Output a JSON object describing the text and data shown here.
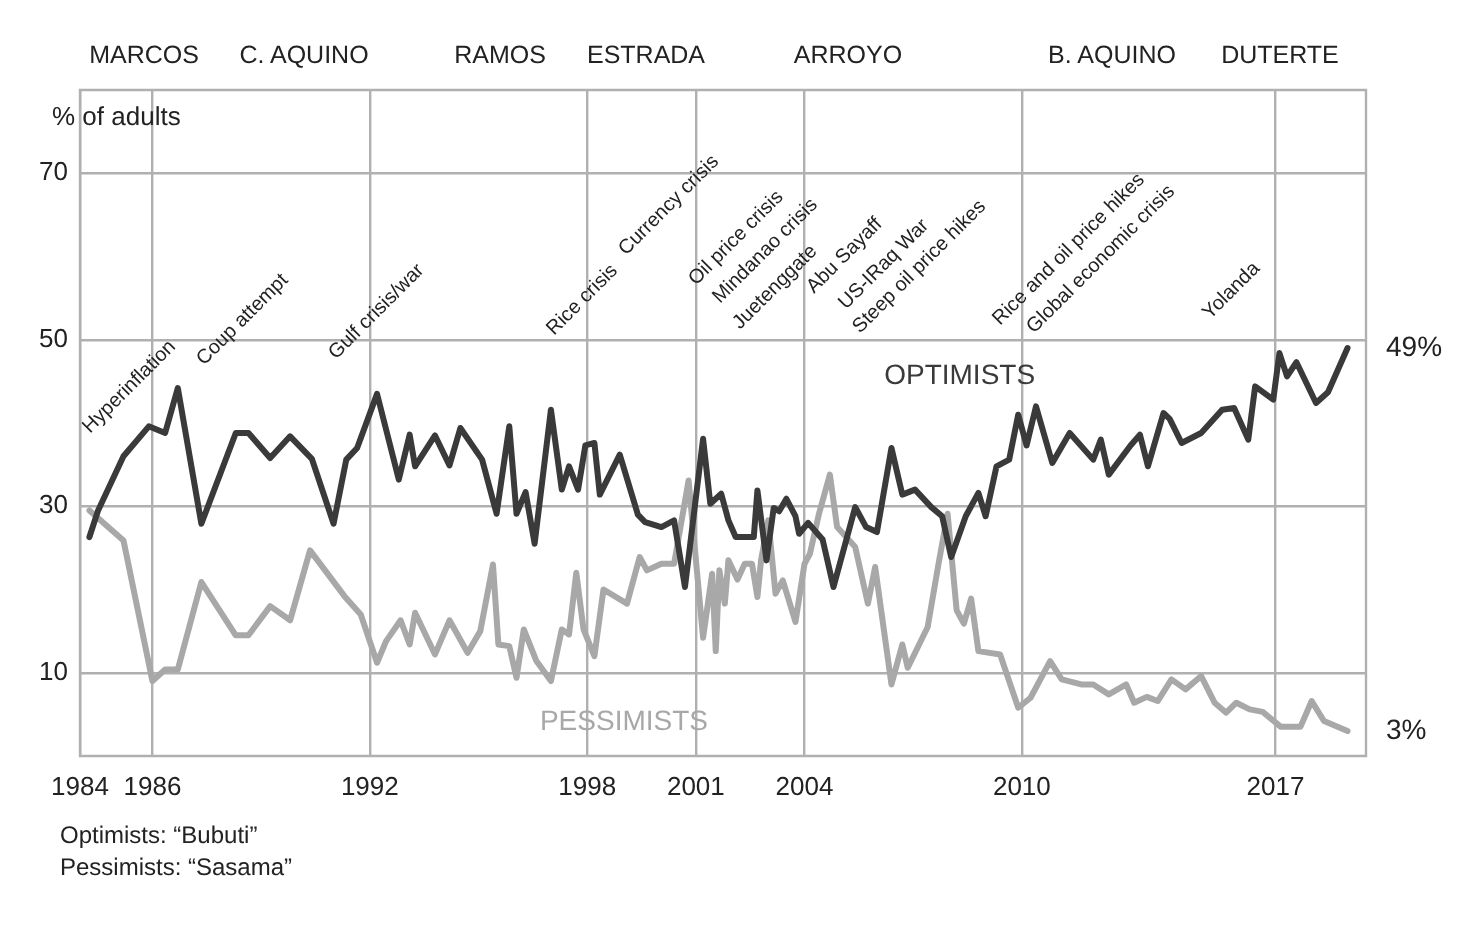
{
  "chart_data": {
    "type": "line",
    "ylabel": "% of adults",
    "xlim": [
      1984,
      2019.5
    ],
    "xticks": [
      1984,
      1986,
      1992,
      1998,
      2001,
      2004,
      2010,
      2017
    ],
    "ylim": [
      0,
      80
    ],
    "yticks": [
      10,
      30,
      50,
      70
    ],
    "grid": true,
    "legend": false,
    "marker": "none",
    "line_style": "solid",
    "series": [
      {
        "name": "OPTIMISTS",
        "color": "#3a3a3a",
        "x": [
          1984.26,
          1984.5,
          1985.2,
          1985.9,
          1986.35,
          1986.7,
          1987.35,
          1988.3,
          1988.65,
          1989.25,
          1989.8,
          1990.4,
          1991.0,
          1991.35,
          1991.65,
          1992.2,
          1992.8,
          1993.1,
          1993.25,
          1993.8,
          1994.2,
          1994.5,
          1995.1,
          1995.5,
          1995.85,
          1996.05,
          1996.3,
          1996.55,
          1997.0,
          1997.3,
          1997.5,
          1997.75,
          1997.95,
          1998.2,
          1998.35,
          1998.9,
          1999.4,
          1999.6,
          2000.05,
          2000.4,
          2000.7,
          2001.2,
          2001.4,
          2001.7,
          2001.9,
          2002.1,
          2002.6,
          2002.7,
          2002.95,
          2003.15,
          2003.3,
          2003.5,
          2003.75,
          2003.85,
          2004.1,
          2004.5,
          2004.8,
          2005.4,
          2005.7,
          2006.0,
          2006.4,
          2006.7,
          2007.05,
          2007.5,
          2007.8,
          2008.05,
          2008.45,
          2008.8,
          2009.0,
          2009.3,
          2009.65,
          2009.9,
          2010.13,
          2010.39,
          2010.84,
          2011.32,
          2011.97,
          2012.18,
          2012.4,
          2013.0,
          2013.26,
          2013.48,
          2013.91,
          2014.08,
          2014.41,
          2014.95,
          2015.53,
          2015.86,
          2016.25,
          2016.44,
          2016.94,
          2017.11,
          2017.32,
          2017.58,
          2018.12,
          2018.45,
          2018.99
        ],
        "values": [
          26.3,
          29.5,
          36,
          39.6,
          38.8,
          44.2,
          27.9,
          38.8,
          38.8,
          35.8,
          38.4,
          35.7,
          27.9,
          35.6,
          37,
          43.5,
          33.2,
          38.6,
          34.8,
          38.5,
          34.9,
          39.4,
          35.6,
          29.1,
          39.6,
          29.1,
          31.7,
          25.5,
          41.6,
          32,
          34.8,
          32,
          37.3,
          37.6,
          31.4,
          36.2,
          29,
          28.1,
          27.5,
          28.3,
          20.3,
          38.1,
          30.3,
          31.5,
          28.3,
          26.3,
          26.3,
          31.9,
          23.5,
          29.8,
          29.4,
          30.9,
          28.8,
          26.7,
          28,
          26,
          20.3,
          29.9,
          27.5,
          26.9,
          37,
          31.4,
          32,
          29.9,
          28.8,
          23.9,
          28.8,
          31.6,
          28.8,
          34.8,
          35.6,
          41,
          37.3,
          42,
          35.2,
          38.8,
          35.6,
          38,
          33.8,
          37.3,
          38.6,
          34.8,
          41.2,
          40.5,
          37.6,
          38.8,
          41.6,
          41.8,
          38,
          44.4,
          42.8,
          48.4,
          45.6,
          47.3,
          42.4,
          43.7,
          49
        ]
      },
      {
        "name": "PESSIMISTS",
        "color": "#a8a8a8",
        "x": [
          1984.26,
          1985.2,
          1986.0,
          1986.35,
          1986.7,
          1987.35,
          1988.3,
          1988.65,
          1989.25,
          1989.8,
          1990.35,
          1991.3,
          1991.75,
          1992.2,
          1992.45,
          1992.85,
          1993.1,
          1993.25,
          1993.8,
          1994.2,
          1994.7,
          1995.05,
          1995.4,
          1995.55,
          1995.85,
          1996.05,
          1996.25,
          1996.6,
          1997.0,
          1997.3,
          1997.5,
          1997.7,
          1997.9,
          1998.2,
          1998.45,
          1999.1,
          1999.45,
          1999.65,
          2000.05,
          2000.4,
          2000.8,
          2001.2,
          2001.45,
          2001.55,
          2001.65,
          2001.8,
          2001.9,
          2002.15,
          2002.35,
          2002.55,
          2002.7,
          2002.8,
          2003.0,
          2003.2,
          2003.4,
          2003.75,
          2004.0,
          2004.15,
          2004.4,
          2004.7,
          2004.9,
          2005.4,
          2005.75,
          2005.95,
          2006.4,
          2006.7,
          2006.85,
          2007.4,
          2007.7,
          2007.95,
          2008.2,
          2008.4,
          2008.6,
          2008.8,
          2009.4,
          2009.9,
          2010.24,
          2010.78,
          2011.1,
          2011.64,
          2011.97,
          2012.4,
          2012.88,
          2013.1,
          2013.45,
          2013.75,
          2014.13,
          2014.52,
          2014.95,
          2015.32,
          2015.64,
          2015.92,
          2016.29,
          2016.65,
          2017.15,
          2017.69,
          2018.0,
          2018.34,
          2018.99
        ],
        "values": [
          29.5,
          25.9,
          9,
          10.4,
          10.4,
          20.9,
          14.5,
          14.5,
          18,
          16.3,
          24.7,
          19.2,
          17,
          11.2,
          13.8,
          16.3,
          13.4,
          17.2,
          12.2,
          16.3,
          12.4,
          15,
          23,
          13.4,
          13.2,
          9.4,
          15.2,
          11.4,
          9,
          15.2,
          14.6,
          22,
          15.2,
          12,
          20,
          18.3,
          23.9,
          22.3,
          23.1,
          23.1,
          33.1,
          14.2,
          21.9,
          12.6,
          22.3,
          18.3,
          23.5,
          21.2,
          23.1,
          23.1,
          19.1,
          23.5,
          28.3,
          19.5,
          21.1,
          16.1,
          23.1,
          24.3,
          29.1,
          33.8,
          27.5,
          25.1,
          18.3,
          22.7,
          8.6,
          13.4,
          10.6,
          15.5,
          23.1,
          29.1,
          17.5,
          15.9,
          18.9,
          12.6,
          12.2,
          5.8,
          7,
          11.4,
          9.2,
          8.6,
          8.6,
          7.4,
          8.6,
          6.4,
          7.1,
          6.6,
          9.2,
          8,
          9.6,
          6.4,
          5.2,
          6.4,
          5.6,
          5.3,
          3.5,
          3.5,
          6.6,
          4.2,
          3
        ]
      }
    ],
    "annotations": [
      "MARCOS",
      "C. AQUINO",
      "RAMOS",
      "ESTRADA",
      "ARROYO",
      "B. AQUINO",
      "DUTERTE",
      "Hyperinflation",
      "Coup attempt",
      "Gulf crisis/war",
      "Rice crisis",
      "Currency crisis",
      "Oil price crisis",
      "Mindanao crisis",
      "Juetenggate",
      "Abu Sayaff",
      "US-IRaq War",
      "Steep oil price hikes",
      "Rice and oil price hikes",
      "Global economic crisis",
      "Yolanda",
      {
        "text": "49%",
        "x": 2018.99,
        "y": 49
      },
      {
        "text": "3%",
        "x": 2018.99,
        "y": 3
      },
      "Optimists: “Bubuti”",
      "Pessimists: “Sasama”"
    ]
  }
}
